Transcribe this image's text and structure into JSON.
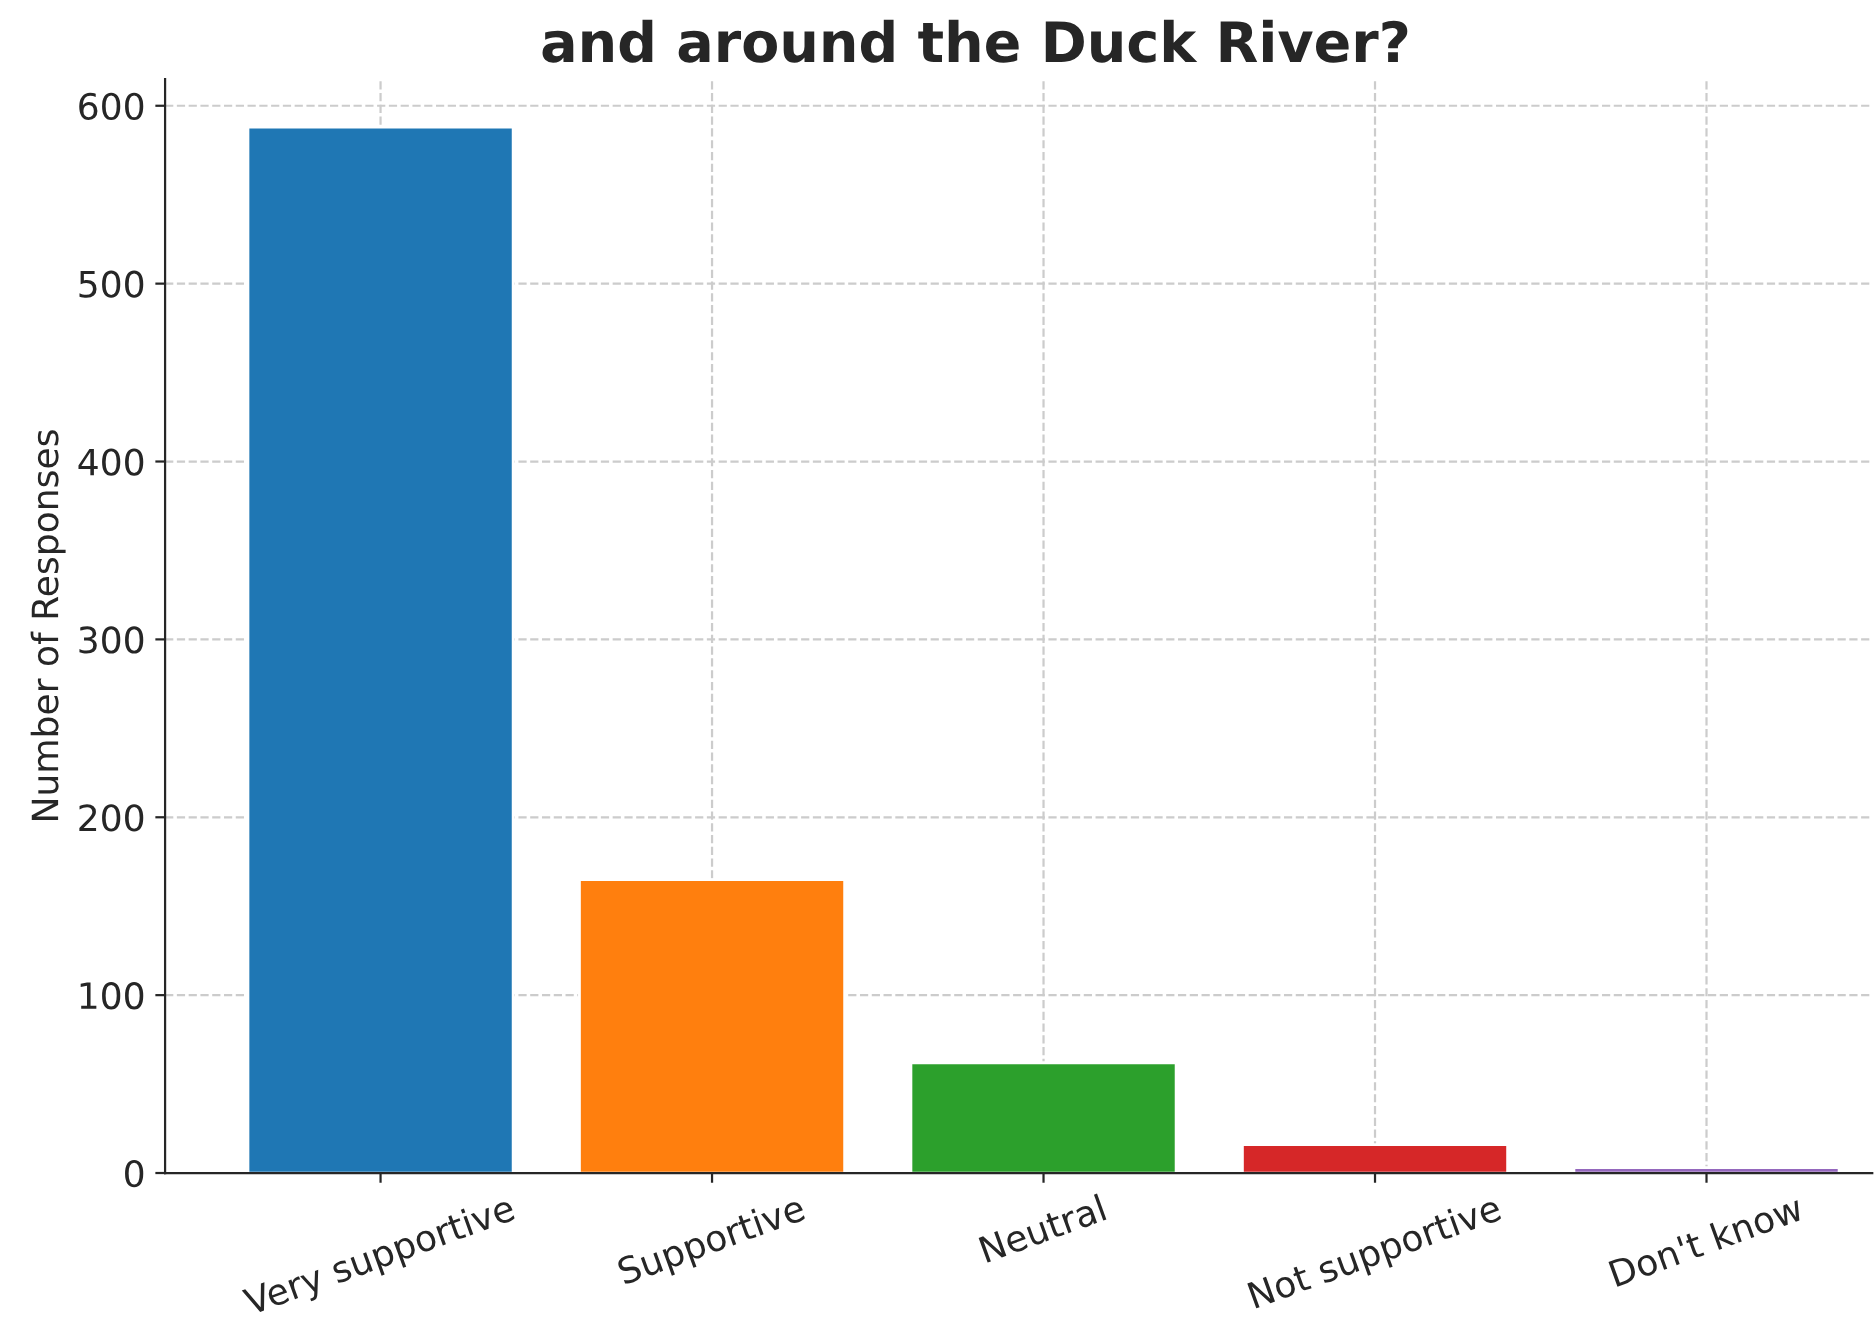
{
  "chart_data": {
    "type": "bar",
    "title": "and around the Duck River?",
    "ylabel": "Number of Responses",
    "categories": [
      "Very supportive",
      "Supportive",
      "Neutral",
      "Not supportive",
      "Don't know"
    ],
    "values": [
      588,
      165,
      62,
      16,
      3
    ],
    "colors": [
      "#1f77b4",
      "#ff7f0e",
      "#2ca02c",
      "#d62728",
      "#9467bd"
    ],
    "ylim": [
      0,
      615
    ],
    "yticks": [
      0,
      100,
      200,
      300,
      400,
      500,
      600
    ],
    "grid": true
  }
}
